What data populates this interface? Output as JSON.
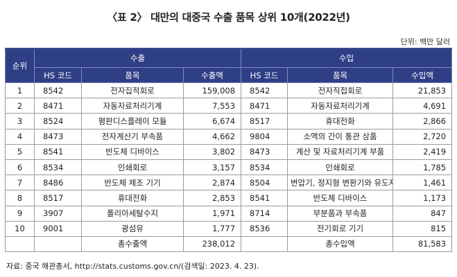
{
  "title": "〈표 2〉 대만의 대중국 수출 품목 상위 10개(2022년)",
  "unit": "단위: 백만 달러",
  "headers": {
    "rank": "순위",
    "export": "수출",
    "import": "수입",
    "hs_code": "HS 코드",
    "item": "품목",
    "export_amount": "수출액",
    "import_amount": "수입액"
  },
  "rows": [
    {
      "rank": "1",
      "ex_code": "8542",
      "ex_item": "전자집적회로",
      "ex_amount": "159,008",
      "im_code": "8542",
      "im_item": "전자직접회로",
      "im_amount": "21,853"
    },
    {
      "rank": "2",
      "ex_code": "8471",
      "ex_item": "자동자료처리기계",
      "ex_amount": "7,553",
      "im_code": "8471",
      "im_item": "자동자료처리기계",
      "im_amount": "4,691"
    },
    {
      "rank": "3",
      "ex_code": "8524",
      "ex_item": "평판디스플레이 모듈",
      "ex_amount": "6,674",
      "im_code": "8517",
      "im_item": "휴대전화",
      "im_amount": "2,866"
    },
    {
      "rank": "4",
      "ex_code": "8473",
      "ex_item": "전자계산기 부속품",
      "ex_amount": "4,662",
      "im_code": "9804",
      "im_item": "소액의 간이 통관 상품",
      "im_amount": "2,720"
    },
    {
      "rank": "5",
      "ex_code": "8541",
      "ex_item": "반도체 디바이스",
      "ex_amount": "3,802",
      "im_code": "8473",
      "im_item": "계산 및 자료처리기계 부품",
      "im_amount": "2,419"
    },
    {
      "rank": "6",
      "ex_code": "8534",
      "ex_item": "인쇄회로",
      "ex_amount": "3,157",
      "im_code": "8534",
      "im_item": "인쇄회로",
      "im_amount": "1,785"
    },
    {
      "rank": "7",
      "ex_code": "8486",
      "ex_item": "반도체 제조 기기",
      "ex_amount": "2,874",
      "im_code": "8504",
      "im_item": "변압기, 정지형 변환기와 유도자",
      "im_amount": "1,461"
    },
    {
      "rank": "8",
      "ex_code": "8517",
      "ex_item": "휴대전화",
      "ex_amount": "2,853",
      "im_code": "8541",
      "im_item": "반도체 디바이스",
      "im_amount": "1,173"
    },
    {
      "rank": "9",
      "ex_code": "3907",
      "ex_item": "폴리아세탈수지",
      "ex_amount": "1,971",
      "im_code": "8714",
      "im_item": "부분품과 부속품",
      "im_amount": "847"
    },
    {
      "rank": "10",
      "ex_code": "9001",
      "ex_item": "광섬유",
      "ex_amount": "1,777",
      "im_code": "8536",
      "im_item": "전기회로 기기",
      "im_amount": "815"
    }
  ],
  "totals": {
    "export_label": "총수출액",
    "export_value": "238,012",
    "import_label": "총수입액",
    "import_value": "81,583"
  },
  "source": "자료: 중국 해관총서, http://stats.customs.gov.cn/(검색일: 2023. 4. 23)."
}
